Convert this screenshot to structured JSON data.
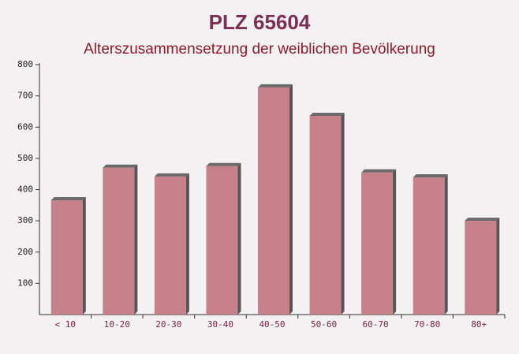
{
  "chart_data": {
    "type": "bar",
    "title": "PLZ 65604",
    "subtitle": "Alterszusammensetzung der weiblichen Bevölkerung",
    "categories": [
      "< 10",
      "10-20",
      "20-30",
      "30-40",
      "40-50",
      "50-60",
      "60-70",
      "70-80",
      "80+"
    ],
    "values": [
      366,
      470,
      442,
      475,
      727,
      636,
      455,
      439,
      300
    ],
    "color": "#c27480",
    "ylim": [
      0,
      800
    ],
    "yticks": [
      100,
      200,
      300,
      400,
      500,
      600,
      700,
      800
    ],
    "grid": false
  }
}
